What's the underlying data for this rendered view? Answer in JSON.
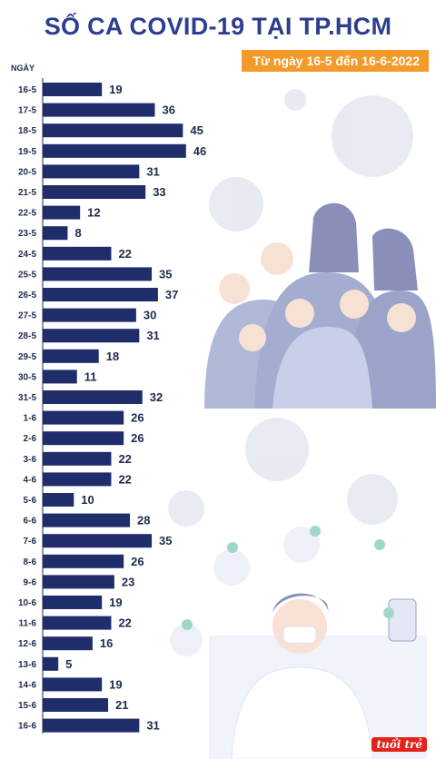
{
  "header": {
    "title": "SỐ CA COVID-19 TẠI TP.HCM",
    "subtitle": "Từ ngày 16-5 đến 16-6-2022",
    "logo_text": "tuổi trẻ"
  },
  "colors": {
    "title": "#2c3e8f",
    "bar": "#1f2d6b",
    "badge": "#f39a2b",
    "illustration": "#4a5a9c"
  },
  "chart_data": {
    "type": "bar",
    "orientation": "horizontal",
    "title": "SỐ CA COVID-19 TẠI TP.HCM",
    "subtitle": "Từ ngày 16-5 đến 16-6-2022",
    "ylabel": "NGÀY",
    "xlabel": "",
    "grid": false,
    "categories": [
      "16-5",
      "17-5",
      "18-5",
      "19-5",
      "20-5",
      "21-5",
      "22-5",
      "23-5",
      "24-5",
      "25-5",
      "26-5",
      "27-5",
      "28-5",
      "29-5",
      "30-5",
      "31-5",
      "1-6",
      "2-6",
      "3-6",
      "4-6",
      "5-6",
      "6-6",
      "7-6",
      "8-6",
      "9-6",
      "10-6",
      "11-6",
      "12-6",
      "13-6",
      "14-6",
      "15-6",
      "16-6"
    ],
    "values": [
      19,
      36,
      45,
      46,
      31,
      33,
      12,
      8,
      22,
      35,
      37,
      30,
      31,
      18,
      11,
      32,
      26,
      26,
      22,
      22,
      10,
      28,
      35,
      26,
      23,
      19,
      22,
      16,
      5,
      19,
      21,
      31
    ]
  }
}
